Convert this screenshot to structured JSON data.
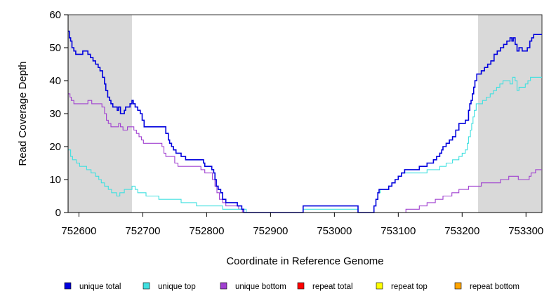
{
  "chart_data": {
    "type": "line",
    "xlabel": "Coordinate in Reference Genome",
    "ylabel": "Read Coverage Depth",
    "xlim": [
      752583,
      753325
    ],
    "ylim": [
      0,
      60
    ],
    "x_ticks": [
      752600,
      752700,
      752800,
      752900,
      753000,
      753100,
      753200,
      753300
    ],
    "y_ticks": [
      0,
      10,
      20,
      30,
      40,
      50,
      60
    ],
    "shaded_regions": [
      [
        752583,
        752683
      ],
      [
        753225,
        753325
      ]
    ],
    "series": [
      {
        "name": "unique total",
        "color": "#0000dd",
        "points": [
          [
            752583,
            55
          ],
          [
            752585,
            53
          ],
          [
            752587,
            52
          ],
          [
            752589,
            50
          ],
          [
            752592,
            49
          ],
          [
            752595,
            48
          ],
          [
            752603,
            48
          ],
          [
            752606,
            49
          ],
          [
            752612,
            49
          ],
          [
            752614,
            48
          ],
          [
            752618,
            47
          ],
          [
            752622,
            46
          ],
          [
            752626,
            45
          ],
          [
            752630,
            44
          ],
          [
            752633,
            43
          ],
          [
            752637,
            41
          ],
          [
            752640,
            39
          ],
          [
            752642,
            37
          ],
          [
            752645,
            35
          ],
          [
            752648,
            34
          ],
          [
            752650,
            33
          ],
          [
            752653,
            32
          ],
          [
            752660,
            31
          ],
          [
            752662,
            32
          ],
          [
            752665,
            30
          ],
          [
            752669,
            30
          ],
          [
            752671,
            31
          ],
          [
            752673,
            32
          ],
          [
            752678,
            32
          ],
          [
            752680,
            33
          ],
          [
            752683,
            34
          ],
          [
            752685,
            33
          ],
          [
            752688,
            32
          ],
          [
            752692,
            31
          ],
          [
            752696,
            30
          ],
          [
            752699,
            28
          ],
          [
            752702,
            26
          ],
          [
            752730,
            26
          ],
          [
            752736,
            24
          ],
          [
            752740,
            22
          ],
          [
            752742,
            21
          ],
          [
            752745,
            20
          ],
          [
            752748,
            19
          ],
          [
            752752,
            18
          ],
          [
            752760,
            17
          ],
          [
            752767,
            16
          ],
          [
            752790,
            16
          ],
          [
            752795,
            15
          ],
          [
            752797,
            14
          ],
          [
            752803,
            14
          ],
          [
            752808,
            13
          ],
          [
            752811,
            12
          ],
          [
            752813,
            10
          ],
          [
            752815,
            8
          ],
          [
            752818,
            7
          ],
          [
            752822,
            6
          ],
          [
            752825,
            4
          ],
          [
            752830,
            3
          ],
          [
            752848,
            2
          ],
          [
            752855,
            1
          ],
          [
            752858,
            0
          ],
          [
            752870,
            0
          ],
          [
            752950,
            0
          ],
          [
            752951,
            2
          ],
          [
            753035,
            2
          ],
          [
            753037,
            0
          ],
          [
            753058,
            0
          ],
          [
            753062,
            2
          ],
          [
            753065,
            4
          ],
          [
            753068,
            6
          ],
          [
            753070,
            7
          ],
          [
            753080,
            7
          ],
          [
            753085,
            8
          ],
          [
            753090,
            9
          ],
          [
            753095,
            10
          ],
          [
            753100,
            11
          ],
          [
            753105,
            12
          ],
          [
            753110,
            13
          ],
          [
            753130,
            13
          ],
          [
            753133,
            14
          ],
          [
            753140,
            14
          ],
          [
            753145,
            15
          ],
          [
            753150,
            15
          ],
          [
            753155,
            16
          ],
          [
            753160,
            17
          ],
          [
            753165,
            18
          ],
          [
            753168,
            19
          ],
          [
            753170,
            20
          ],
          [
            753175,
            21
          ],
          [
            753180,
            22
          ],
          [
            753185,
            23
          ],
          [
            753190,
            25
          ],
          [
            753195,
            27
          ],
          [
            753205,
            28
          ],
          [
            753210,
            31
          ],
          [
            753212,
            33
          ],
          [
            753214,
            34
          ],
          [
            753216,
            36
          ],
          [
            753218,
            38
          ],
          [
            753220,
            40
          ],
          [
            753223,
            42
          ],
          [
            753225,
            42
          ],
          [
            753230,
            43
          ],
          [
            753235,
            44
          ],
          [
            753240,
            45
          ],
          [
            753245,
            46
          ],
          [
            753250,
            48
          ],
          [
            753255,
            49
          ],
          [
            753260,
            50
          ],
          [
            753265,
            51
          ],
          [
            753270,
            52
          ],
          [
            753275,
            53
          ],
          [
            753278,
            52
          ],
          [
            753280,
            53
          ],
          [
            753283,
            51
          ],
          [
            753286,
            49
          ],
          [
            753289,
            50
          ],
          [
            753292,
            50
          ],
          [
            753294,
            49
          ],
          [
            753300,
            49
          ],
          [
            753302,
            50
          ],
          [
            753306,
            52
          ],
          [
            753309,
            53
          ],
          [
            753312,
            54
          ],
          [
            753325,
            54
          ]
        ]
      },
      {
        "name": "unique top",
        "color": "#40e0e0",
        "points": [
          [
            752583,
            19
          ],
          [
            752587,
            17
          ],
          [
            752590,
            16
          ],
          [
            752596,
            15
          ],
          [
            752601,
            14
          ],
          [
            752607,
            14
          ],
          [
            752612,
            13
          ],
          [
            752619,
            12
          ],
          [
            752626,
            11
          ],
          [
            752631,
            10
          ],
          [
            752635,
            9
          ],
          [
            752640,
            8
          ],
          [
            752646,
            7
          ],
          [
            752651,
            6
          ],
          [
            752659,
            5
          ],
          [
            752664,
            6
          ],
          [
            752671,
            7
          ],
          [
            752677,
            7
          ],
          [
            752683,
            8
          ],
          [
            752688,
            7
          ],
          [
            752692,
            6
          ],
          [
            752700,
            6
          ],
          [
            752705,
            5
          ],
          [
            752720,
            5
          ],
          [
            752725,
            4
          ],
          [
            752745,
            4
          ],
          [
            752760,
            3
          ],
          [
            752780,
            3
          ],
          [
            752784,
            2
          ],
          [
            752820,
            2
          ],
          [
            752825,
            1
          ],
          [
            752855,
            1
          ],
          [
            752862,
            0
          ],
          [
            752950,
            0
          ],
          [
            752951,
            1
          ],
          [
            753035,
            1
          ],
          [
            753037,
            0
          ],
          [
            753058,
            0
          ],
          [
            753062,
            2
          ],
          [
            753065,
            4
          ],
          [
            753068,
            6
          ],
          [
            753072,
            7
          ],
          [
            753080,
            7
          ],
          [
            753085,
            8
          ],
          [
            753090,
            9
          ],
          [
            753095,
            10
          ],
          [
            753100,
            11
          ],
          [
            753105,
            12
          ],
          [
            753140,
            12
          ],
          [
            753145,
            13
          ],
          [
            753160,
            13
          ],
          [
            753165,
            14
          ],
          [
            753175,
            15
          ],
          [
            753185,
            16
          ],
          [
            753195,
            17
          ],
          [
            753200,
            18
          ],
          [
            753205,
            19
          ],
          [
            753208,
            21
          ],
          [
            753210,
            23
          ],
          [
            753213,
            25
          ],
          [
            753215,
            27
          ],
          [
            753217,
            29
          ],
          [
            753219,
            31
          ],
          [
            753222,
            33
          ],
          [
            753228,
            33
          ],
          [
            753232,
            34
          ],
          [
            753238,
            35
          ],
          [
            753244,
            36
          ],
          [
            753249,
            37
          ],
          [
            753254,
            38
          ],
          [
            753259,
            39
          ],
          [
            753264,
            40
          ],
          [
            753270,
            40
          ],
          [
            753275,
            39
          ],
          [
            753279,
            41
          ],
          [
            753283,
            40
          ],
          [
            753286,
            37
          ],
          [
            753289,
            38
          ],
          [
            753296,
            38
          ],
          [
            753299,
            39
          ],
          [
            753303,
            40
          ],
          [
            753307,
            41
          ],
          [
            753325,
            41
          ]
        ]
      },
      {
        "name": "unique bottom",
        "color": "#a040d0",
        "points": [
          [
            752583,
            36
          ],
          [
            752586,
            35
          ],
          [
            752588,
            34
          ],
          [
            752592,
            33
          ],
          [
            752612,
            33
          ],
          [
            752614,
            34
          ],
          [
            752620,
            33
          ],
          [
            752632,
            33
          ],
          [
            752636,
            32
          ],
          [
            752640,
            30
          ],
          [
            752643,
            28
          ],
          [
            752646,
            27
          ],
          [
            752650,
            26
          ],
          [
            752660,
            26
          ],
          [
            752662,
            27
          ],
          [
            752665,
            26
          ],
          [
            752669,
            25
          ],
          [
            752673,
            25
          ],
          [
            752676,
            26
          ],
          [
            752683,
            26
          ],
          [
            752686,
            25
          ],
          [
            752690,
            24
          ],
          [
            752694,
            23
          ],
          [
            752698,
            22
          ],
          [
            752701,
            21
          ],
          [
            752720,
            21
          ],
          [
            752730,
            20
          ],
          [
            752733,
            18
          ],
          [
            752736,
            17
          ],
          [
            752745,
            17
          ],
          [
            752750,
            15
          ],
          [
            752755,
            14
          ],
          [
            752787,
            14
          ],
          [
            752791,
            13
          ],
          [
            752797,
            12
          ],
          [
            752806,
            12
          ],
          [
            752809,
            10
          ],
          [
            752813,
            8
          ],
          [
            752816,
            6
          ],
          [
            752820,
            4
          ],
          [
            752825,
            3
          ],
          [
            752830,
            2
          ],
          [
            752850,
            1
          ],
          [
            752856,
            0
          ],
          [
            753110,
            0
          ],
          [
            753112,
            1
          ],
          [
            753130,
            1
          ],
          [
            753133,
            2
          ],
          [
            753140,
            2
          ],
          [
            753145,
            3
          ],
          [
            753155,
            3
          ],
          [
            753158,
            4
          ],
          [
            753165,
            4
          ],
          [
            753170,
            5
          ],
          [
            753180,
            5
          ],
          [
            753184,
            6
          ],
          [
            753190,
            6
          ],
          [
            753195,
            7
          ],
          [
            753205,
            7
          ],
          [
            753210,
            8
          ],
          [
            753225,
            8
          ],
          [
            753230,
            9
          ],
          [
            753255,
            9
          ],
          [
            753260,
            10
          ],
          [
            753270,
            10
          ],
          [
            753273,
            11
          ],
          [
            753285,
            11
          ],
          [
            753288,
            10
          ],
          [
            753300,
            10
          ],
          [
            753305,
            11
          ],
          [
            753308,
            12
          ],
          [
            753315,
            13
          ],
          [
            753325,
            13
          ]
        ]
      },
      {
        "name": "repeat total",
        "color": "#ff0000",
        "points": [
          [
            752583,
            0
          ],
          [
            753325,
            0
          ]
        ]
      },
      {
        "name": "repeat top",
        "color": "#ffff00",
        "points": [
          [
            752583,
            0
          ],
          [
            753325,
            0
          ]
        ]
      },
      {
        "name": "repeat bottom",
        "color": "#ffa500",
        "points": [
          [
            752583,
            0
          ],
          [
            753325,
            0
          ]
        ]
      }
    ],
    "legend": {
      "position": "bottom",
      "entries": [
        "unique total",
        "unique top",
        "unique bottom",
        "repeat total",
        "repeat top",
        "repeat bottom"
      ]
    }
  }
}
